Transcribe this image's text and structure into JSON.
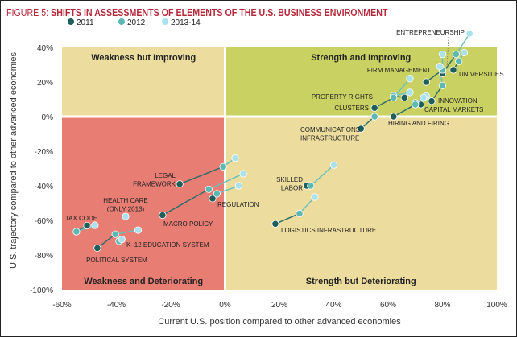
{
  "figure_label": "FIGURE 5:",
  "title": "SHIFTS IN ASSESSMENTS OF ELEMENTS OF THE U.S. BUSINESS ENVIRONMENT",
  "chart_data": {
    "type": "scatter",
    "title": "SHIFTS IN ASSESSMENTS OF ELEMENTS OF THE U.S. BUSINESS ENVIRONMENT",
    "xlabel": "Current U.S. position compared to other advanced economies",
    "ylabel": "U.S. trajectory compared to other advanced economies",
    "xlim": [
      -60,
      100
    ],
    "ylim": [
      -100,
      40
    ],
    "x_ticks": [
      "-60%",
      "-40%",
      "-20%",
      "0%",
      "20%",
      "40%",
      "60%",
      "80%",
      "100%"
    ],
    "y_ticks": [
      "40%",
      "20%",
      "0%",
      "-20%",
      "-40%",
      "-60%",
      "-80%",
      "-100%"
    ],
    "legend_position": "top-left",
    "legend": [
      {
        "name": "2011",
        "color": "#1e5e5b"
      },
      {
        "name": "2012",
        "color": "#5cb8b2"
      },
      {
        "name": "2013-14",
        "color": "#a9e1ee"
      }
    ],
    "quadrants": [
      {
        "label": "Weakness but Improving",
        "color": "#ecdd9f"
      },
      {
        "label": "Strength and Improving",
        "color": "#c9d162"
      },
      {
        "label": "Weakness and Deteriorating",
        "color": "#e87d74"
      },
      {
        "label": "Strength but Deteriorating",
        "color": "#ecdd9f"
      }
    ],
    "series": [
      {
        "label": [
          "ENTREPRENEURSHIP"
        ],
        "points": [
          [
            80,
            25
          ],
          [
            85,
            36
          ],
          [
            90,
            48
          ]
        ]
      },
      {
        "label": [
          "UNIVERSITIES"
        ],
        "points": [
          [
            84,
            27
          ],
          [
            86,
            32
          ],
          [
            88,
            37
          ]
        ]
      },
      {
        "label": [
          "FIRM MANAGEMENT"
        ],
        "points": [
          [
            74,
            20
          ],
          [
            80,
            27
          ],
          [
            80,
            36
          ]
        ]
      },
      {
        "label": [
          "INNOVATION"
        ],
        "points": [
          [
            76,
            9
          ],
          [
            80,
            18
          ],
          [
            79,
            29
          ]
        ]
      },
      {
        "label": [
          "CAPITAL MARKETS"
        ],
        "points": [
          [
            72,
            7
          ],
          [
            70,
            8
          ],
          [
            74,
            12
          ]
        ]
      },
      {
        "label": [
          "PROPERTY RIGHTS"
        ],
        "points": [
          [
            66,
            11
          ],
          [
            62,
            12
          ],
          [
            68,
            14
          ]
        ]
      },
      {
        "label": [
          "CLUSTERS"
        ],
        "points": [
          [
            55,
            5
          ],
          [
            62,
            11
          ],
          [
            68,
            22
          ]
        ]
      },
      {
        "label": [
          "HIRING AND FIRING"
        ],
        "points": [
          [
            62,
            0
          ],
          [
            70,
            7
          ],
          [
            73,
            11
          ]
        ]
      },
      {
        "label": [
          "COMMUNICATIONS",
          "INFRASTRUCTURE"
        ],
        "points": [
          [
            50,
            -7
          ],
          [
            55,
            0
          ],
          [
            null,
            null
          ]
        ]
      },
      {
        "label": [
          "SKILLED",
          "LABOR"
        ],
        "points": [
          [
            30,
            -40
          ],
          [
            31.5,
            -40
          ],
          [
            40,
            -28
          ]
        ]
      },
      {
        "label": [
          "LOGISTICS INFRASTRUCTURE"
        ],
        "points": [
          [
            18.5,
            -62
          ],
          [
            27.4,
            -56
          ],
          [
            33,
            -46.5
          ]
        ]
      },
      {
        "label": [
          "LEGAL",
          "FRAMEWORK"
        ],
        "points": [
          [
            -16.7,
            -39
          ],
          [
            -0.7,
            -29
          ],
          [
            3.7,
            -24
          ]
        ]
      },
      {
        "label": [
          "REGULATION"
        ],
        "points": [
          [
            -4.6,
            -47.4
          ],
          [
            -3,
            -44.6
          ],
          [
            5,
            -40
          ]
        ]
      },
      {
        "label": [
          "MACRO POLICY"
        ],
        "points": [
          [
            -23,
            -57
          ],
          [
            -6,
            -42
          ],
          [
            6.7,
            -33
          ]
        ]
      },
      {
        "label": [
          "HEALTH CARE",
          "(ONLY 2013)"
        ],
        "points": [
          [
            null,
            null
          ],
          [
            null,
            null
          ],
          [
            -36.6,
            -57.7
          ]
        ]
      },
      {
        "label": [
          "TAX CODE"
        ],
        "points": [
          [
            -50.8,
            -63
          ],
          [
            -54.7,
            -66.5
          ],
          [
            -47.9,
            -62.8
          ]
        ]
      },
      {
        "label": [
          "K–12 EDUCATION SYSTEM"
        ],
        "points": [
          [
            null,
            null
          ],
          [
            -39,
            -72
          ],
          [
            -38,
            -71
          ]
        ]
      },
      {
        "label": [
          "POLITICAL SYSTEM"
        ],
        "points": [
          [
            -47,
            -76
          ],
          [
            -40.4,
            -68
          ],
          [
            -32,
            -65.6
          ]
        ]
      }
    ]
  }
}
